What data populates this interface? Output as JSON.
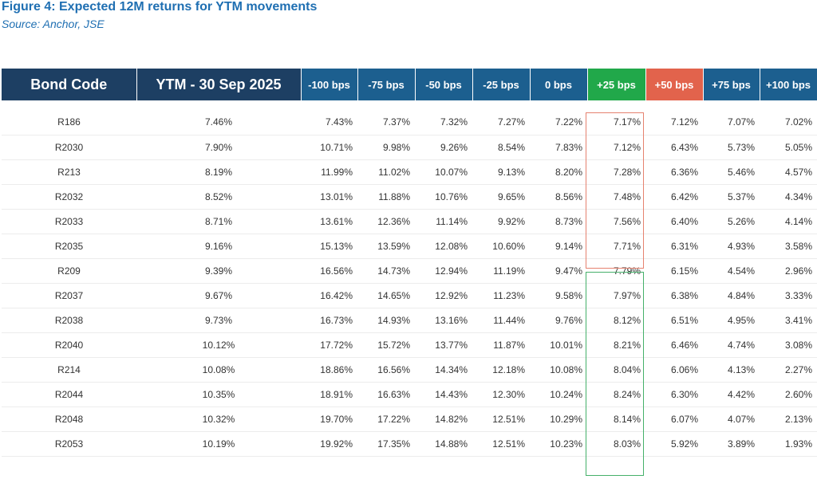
{
  "figure": {
    "title": "Figure 4: Expected 12M returns for YTM movements",
    "source": "Source: Anchor, JSE"
  },
  "table": {
    "headers": [
      "Bond Code",
      "YTM - 30 Sep 2025",
      "-100 bps",
      "-75 bps",
      "-50 bps",
      "-25 bps",
      "0 bps",
      "+25 bps",
      "+50 bps",
      "+75 bps",
      "+100 bps"
    ],
    "header_colors": {
      "dark": "#1d3f63",
      "mid": "#1c5f8f",
      "green": "#21a84a",
      "red": "#e2634c"
    },
    "rows": [
      [
        "R186",
        "7.46%",
        "7.43%",
        "7.37%",
        "7.32%",
        "7.27%",
        "7.22%",
        "7.17%",
        "7.12%",
        "7.07%",
        "7.02%"
      ],
      [
        "R2030",
        "7.90%",
        "10.71%",
        "9.98%",
        "9.26%",
        "8.54%",
        "7.83%",
        "7.12%",
        "6.43%",
        "5.73%",
        "5.05%"
      ],
      [
        "R213",
        "8.19%",
        "11.99%",
        "11.02%",
        "10.07%",
        "9.13%",
        "8.20%",
        "7.28%",
        "6.36%",
        "5.46%",
        "4.57%"
      ],
      [
        "R2032",
        "8.52%",
        "13.01%",
        "11.88%",
        "10.76%",
        "9.65%",
        "8.56%",
        "7.48%",
        "6.42%",
        "5.37%",
        "4.34%"
      ],
      [
        "R2033",
        "8.71%",
        "13.61%",
        "12.36%",
        "11.14%",
        "9.92%",
        "8.73%",
        "7.56%",
        "6.40%",
        "5.26%",
        "4.14%"
      ],
      [
        "R2035",
        "9.16%",
        "15.13%",
        "13.59%",
        "12.08%",
        "10.60%",
        "9.14%",
        "7.71%",
        "6.31%",
        "4.93%",
        "3.58%"
      ],
      [
        "R209",
        "9.39%",
        "16.56%",
        "14.73%",
        "12.94%",
        "11.19%",
        "9.47%",
        "7.79%",
        "6.15%",
        "4.54%",
        "2.96%"
      ],
      [
        "R2037",
        "9.67%",
        "16.42%",
        "14.65%",
        "12.92%",
        "11.23%",
        "9.58%",
        "7.97%",
        "6.38%",
        "4.84%",
        "3.33%"
      ],
      [
        "R2038",
        "9.73%",
        "16.73%",
        "14.93%",
        "13.16%",
        "11.44%",
        "9.76%",
        "8.12%",
        "6.51%",
        "4.95%",
        "3.41%"
      ],
      [
        "R2040",
        "10.12%",
        "17.72%",
        "15.72%",
        "13.77%",
        "11.87%",
        "10.01%",
        "8.21%",
        "6.46%",
        "4.74%",
        "3.08%"
      ],
      [
        "R214",
        "10.08%",
        "18.86%",
        "16.56%",
        "14.34%",
        "12.18%",
        "10.08%",
        "8.04%",
        "6.06%",
        "4.13%",
        "2.27%"
      ],
      [
        "R2044",
        "10.35%",
        "18.91%",
        "16.63%",
        "14.43%",
        "12.30%",
        "10.24%",
        "8.24%",
        "6.30%",
        "4.42%",
        "2.60%"
      ],
      [
        "R2048",
        "10.32%",
        "19.70%",
        "17.22%",
        "14.82%",
        "12.51%",
        "10.29%",
        "8.14%",
        "6.07%",
        "4.07%",
        "2.13%"
      ],
      [
        "R2053",
        "10.19%",
        "19.92%",
        "17.35%",
        "14.88%",
        "12.51%",
        "10.23%",
        "8.03%",
        "5.92%",
        "3.89%",
        "1.93%"
      ]
    ]
  }
}
